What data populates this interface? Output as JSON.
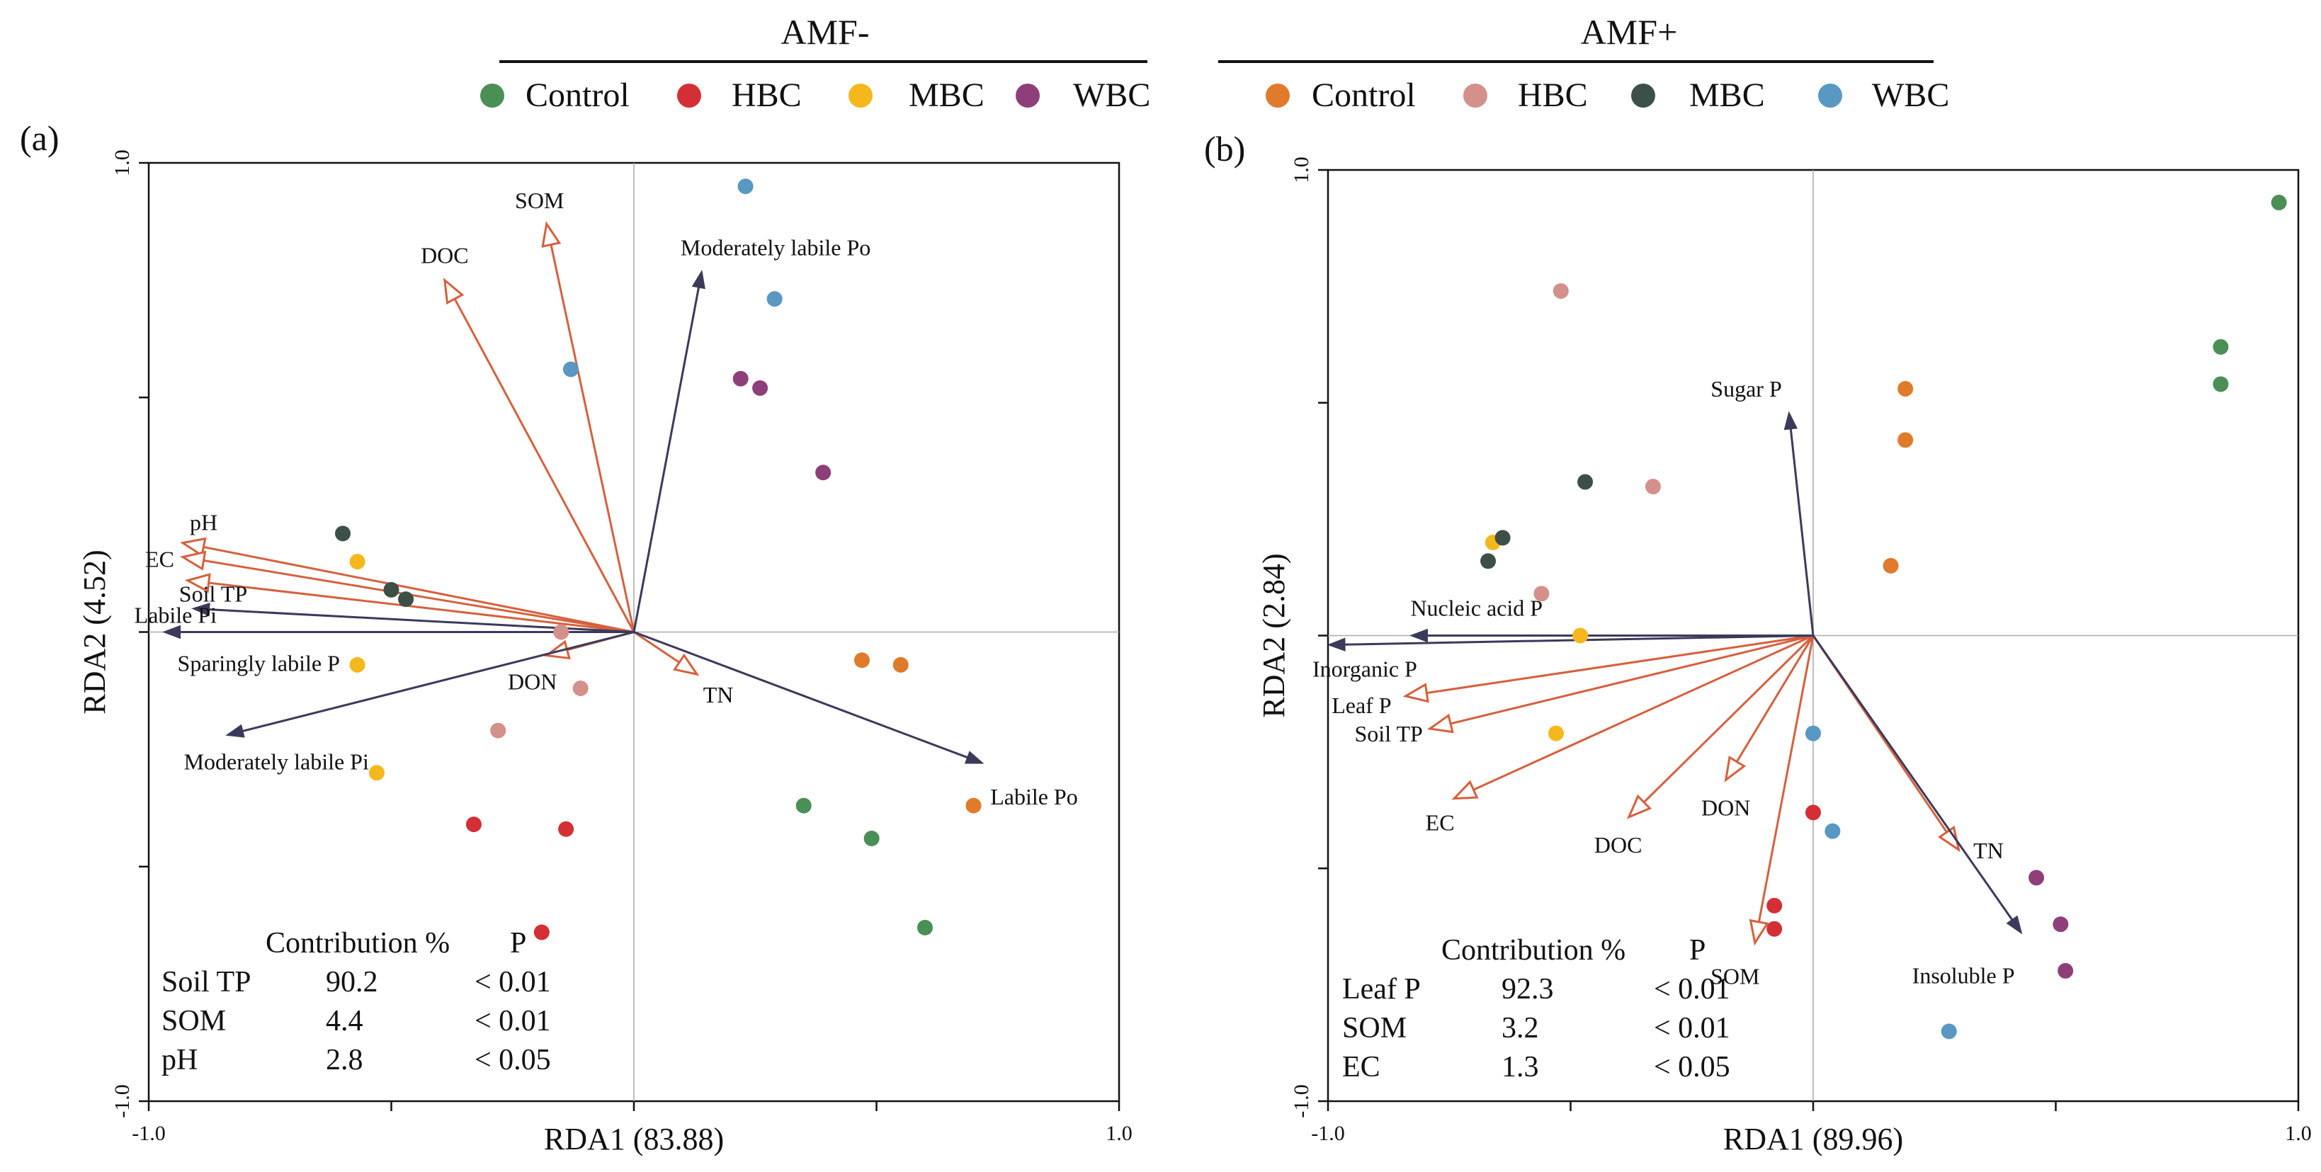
{
  "legend": {
    "groups": [
      {
        "title": "AMF-",
        "entries": [
          {
            "label": "Control",
            "color": "#4a8f55"
          },
          {
            "label": "HBC",
            "color": "#d32f35"
          },
          {
            "label": "MBC",
            "color": "#f5b81c"
          },
          {
            "label": "WBC",
            "color": "#8e3f7a"
          }
        ]
      },
      {
        "title": "AMF+",
        "entries": [
          {
            "label": "Control",
            "color": "#e07b2b"
          },
          {
            "label": "HBC",
            "color": "#d4908a"
          },
          {
            "label": "MBC",
            "color": "#3d5048"
          },
          {
            "label": "WBC",
            "color": "#5898c2"
          }
        ]
      }
    ]
  },
  "chart_data": [
    {
      "type": "scatter",
      "panel_label": "(a)",
      "group": "AMF-",
      "xlabel": "RDA1 (83.88)",
      "ylabel": "RDA2 (4.52)",
      "xlim": [
        -1.0,
        1.0
      ],
      "ylim": [
        -1.0,
        1.0
      ],
      "ticks": {
        "x_labels": [
          "-1.0",
          "1.0"
        ],
        "y_labels": [
          "1.0",
          "-1.0"
        ]
      },
      "env_color": "#d6603d",
      "resp_color": "#3b3a5a",
      "env_vectors": [
        {
          "name": "SOM",
          "x": -0.18,
          "y": 0.87
        },
        {
          "name": "DOC",
          "x": -0.39,
          "y": 0.75
        },
        {
          "name": "pH",
          "x": -0.93,
          "y": 0.19
        },
        {
          "name": "EC",
          "x": -0.93,
          "y": 0.16
        },
        {
          "name": "Soil TP",
          "x": -0.92,
          "y": 0.11
        },
        {
          "name": "DON",
          "x": -0.18,
          "y": -0.05
        },
        {
          "name": "TN",
          "x": 0.13,
          "y": -0.09
        }
      ],
      "resp_vectors": [
        {
          "name": "Moderately labile Po",
          "x": 0.14,
          "y": 0.77
        },
        {
          "name": "Labile Pi",
          "x": -0.91,
          "y": 0.05
        },
        {
          "name": "Sparingly labile P",
          "x": -0.97,
          "y": 0.0
        },
        {
          "name": "Moderately labile Pi",
          "x": -0.84,
          "y": -0.22
        },
        {
          "name": "Labile Po",
          "x": 0.72,
          "y": -0.28
        }
      ],
      "points": [
        {
          "group": "AMF- Control",
          "x": 0.35,
          "y": -0.37
        },
        {
          "group": "AMF- Control",
          "x": 0.49,
          "y": -0.44
        },
        {
          "group": "AMF- Control",
          "x": 0.6,
          "y": -0.63
        },
        {
          "group": "AMF- HBC",
          "x": -0.33,
          "y": -0.41
        },
        {
          "group": "AMF- HBC",
          "x": -0.14,
          "y": -0.42
        },
        {
          "group": "AMF- HBC",
          "x": -0.19,
          "y": -0.64
        },
        {
          "group": "AMF- MBC",
          "x": -0.57,
          "y": 0.15
        },
        {
          "group": "AMF- MBC",
          "x": -0.57,
          "y": -0.07
        },
        {
          "group": "AMF- MBC",
          "x": -0.53,
          "y": -0.3
        },
        {
          "group": "AMF- WBC",
          "x": 0.22,
          "y": 0.54
        },
        {
          "group": "AMF- WBC",
          "x": 0.26,
          "y": 0.52
        },
        {
          "group": "AMF- WBC",
          "x": 0.39,
          "y": 0.34
        },
        {
          "group": "AMF+ Control",
          "x": 0.47,
          "y": -0.06
        },
        {
          "group": "AMF+ Control",
          "x": 0.55,
          "y": -0.07
        },
        {
          "group": "AMF+ Control",
          "x": 0.7,
          "y": -0.37
        },
        {
          "group": "AMF+ HBC",
          "x": -0.15,
          "y": 0.0
        },
        {
          "group": "AMF+ HBC",
          "x": -0.11,
          "y": -0.12
        },
        {
          "group": "AMF+ HBC",
          "x": -0.28,
          "y": -0.21
        },
        {
          "group": "AMF+ MBC",
          "x": -0.6,
          "y": 0.21
        },
        {
          "group": "AMF+ MBC",
          "x": -0.5,
          "y": 0.09
        },
        {
          "group": "AMF+ MBC",
          "x": -0.47,
          "y": 0.07
        },
        {
          "group": "AMF+ WBC",
          "x": 0.23,
          "y": 0.95
        },
        {
          "group": "AMF+ WBC",
          "x": 0.29,
          "y": 0.71
        },
        {
          "group": "AMF+ WBC",
          "x": -0.13,
          "y": 0.56
        }
      ],
      "table": {
        "headers": [
          "",
          "Contribution %",
          "P"
        ],
        "rows": [
          [
            "Soil TP",
            "90.2",
            "< 0.01"
          ],
          [
            "SOM",
            "4.4",
            "< 0.01"
          ],
          [
            "pH",
            "2.8",
            "< 0.05"
          ]
        ]
      }
    },
    {
      "type": "scatter",
      "panel_label": "(b)",
      "group": "AMF+",
      "xlabel": "RDA1 (89.96)",
      "ylabel": "RDA2 (2.84)",
      "xlim": [
        -1.0,
        1.0
      ],
      "ylim": [
        -1.0,
        1.0
      ],
      "ticks": {
        "x_labels": [
          "-1.0",
          "1.0"
        ],
        "y_labels": [
          "1.0",
          "-1.0"
        ]
      },
      "env_color": "#d6603d",
      "resp_color": "#3b3a5a",
      "env_vectors": [
        {
          "name": "Leaf P",
          "x": -0.84,
          "y": -0.13
        },
        {
          "name": "Soil TP",
          "x": -0.79,
          "y": -0.2
        },
        {
          "name": "EC",
          "x": -0.74,
          "y": -0.35
        },
        {
          "name": "DOC",
          "x": -0.38,
          "y": -0.39
        },
        {
          "name": "DON",
          "x": -0.18,
          "y": -0.31
        },
        {
          "name": "SOM",
          "x": -0.12,
          "y": -0.66
        },
        {
          "name": "TN",
          "x": 0.3,
          "y": -0.46
        }
      ],
      "resp_vectors": [
        {
          "name": "Sugar P",
          "x": -0.05,
          "y": 0.48
        },
        {
          "name": "Nucleic acid P",
          "x": -0.83,
          "y": 0.0
        },
        {
          "name": "Inorganic P",
          "x": -1.0,
          "y": -0.02
        },
        {
          "name": "Insoluble P",
          "x": 0.43,
          "y": -0.64
        }
      ],
      "points": [
        {
          "group": "AMF- Control",
          "x": 0.96,
          "y": 0.93
        },
        {
          "group": "AMF- Control",
          "x": 0.84,
          "y": 0.62
        },
        {
          "group": "AMF- Control",
          "x": 0.84,
          "y": 0.54
        },
        {
          "group": "AMF- HBC",
          "x": -0.08,
          "y": -0.58
        },
        {
          "group": "AMF- HBC",
          "x": -0.08,
          "y": -0.63
        },
        {
          "group": "AMF- HBC",
          "x": 0.0,
          "y": -0.38
        },
        {
          "group": "AMF- MBC",
          "x": -0.66,
          "y": 0.2
        },
        {
          "group": "AMF- MBC",
          "x": -0.48,
          "y": 0.0
        },
        {
          "group": "AMF- MBC",
          "x": -0.53,
          "y": -0.21
        },
        {
          "group": "AMF- WBC",
          "x": 0.46,
          "y": -0.52
        },
        {
          "group": "AMF- WBC",
          "x": 0.51,
          "y": -0.62
        },
        {
          "group": "AMF- WBC",
          "x": 0.52,
          "y": -0.72
        },
        {
          "group": "AMF+ Control",
          "x": 0.19,
          "y": 0.53
        },
        {
          "group": "AMF+ Control",
          "x": 0.19,
          "y": 0.42
        },
        {
          "group": "AMF+ Control",
          "x": 0.16,
          "y": 0.15
        },
        {
          "group": "AMF+ HBC",
          "x": -0.52,
          "y": 0.74
        },
        {
          "group": "AMF+ HBC",
          "x": -0.33,
          "y": 0.32
        },
        {
          "group": "AMF+ HBC",
          "x": -0.56,
          "y": 0.09
        },
        {
          "group": "AMF+ MBC",
          "x": -0.47,
          "y": 0.33
        },
        {
          "group": "AMF+ MBC",
          "x": -0.64,
          "y": 0.21
        },
        {
          "group": "AMF+ MBC",
          "x": -0.67,
          "y": 0.16
        },
        {
          "group": "AMF+ WBC",
          "x": 0.0,
          "y": -0.21
        },
        {
          "group": "AMF+ WBC",
          "x": 0.04,
          "y": -0.42
        },
        {
          "group": "AMF+ WBC",
          "x": 0.28,
          "y": -0.85
        }
      ],
      "table": {
        "headers": [
          "",
          "Contribution %",
          "P"
        ],
        "rows": [
          [
            "Leaf P",
            "92.3",
            "< 0.01"
          ],
          [
            "SOM",
            "3.2",
            "< 0.01"
          ],
          [
            "EC",
            "1.3",
            "< 0.05"
          ]
        ]
      }
    }
  ]
}
